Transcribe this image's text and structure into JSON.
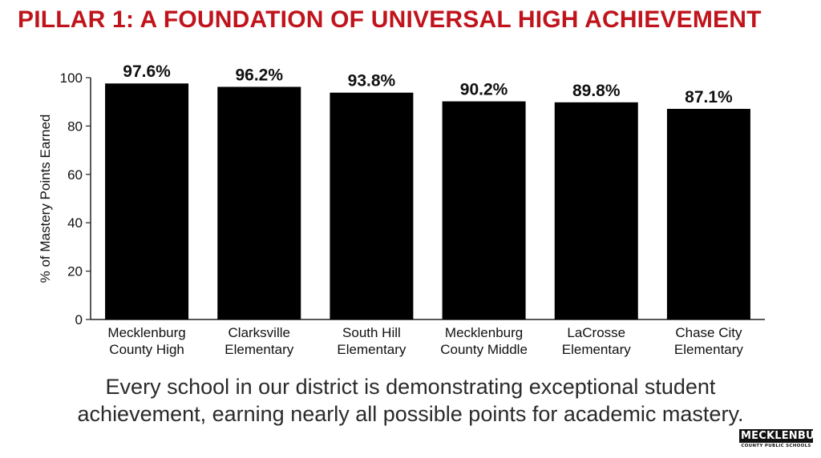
{
  "slide": {
    "title": "PILLAR 1: A FOUNDATION OF UNIVERSAL HIGH ACHIEVEMENT",
    "caption_line1": "Every school in our district is demonstrating exceptional student",
    "caption_line2": "achievement, earning nearly all possible points for academic mastery.",
    "logo_main": "MECKLENBURG",
    "logo_sub": "COUNTY PUBLIC SCHOOLS",
    "title_color": "#c0141c"
  },
  "chart_data": {
    "type": "bar",
    "categories": [
      [
        "Mecklenburg",
        "County High"
      ],
      [
        "Clarksville",
        "Elementary"
      ],
      [
        "South Hill",
        "Elementary"
      ],
      [
        "Mecklenburg",
        "County Middle"
      ],
      [
        "LaCrosse",
        "Elementary"
      ],
      [
        "Chase City",
        "Elementary"
      ]
    ],
    "values": [
      97.6,
      96.2,
      93.8,
      90.2,
      89.8,
      87.1
    ],
    "data_labels": [
      "97.6%",
      "96.2%",
      "93.8%",
      "90.2%",
      "89.8%",
      "87.1%"
    ],
    "ylabel": "% of Mastery Points Earned",
    "xlabel": "",
    "ylim": [
      0,
      100
    ],
    "yticks": [
      0,
      20,
      40,
      60,
      80,
      100
    ],
    "bar_color": "#000000",
    "grid": false,
    "legend": "none"
  }
}
